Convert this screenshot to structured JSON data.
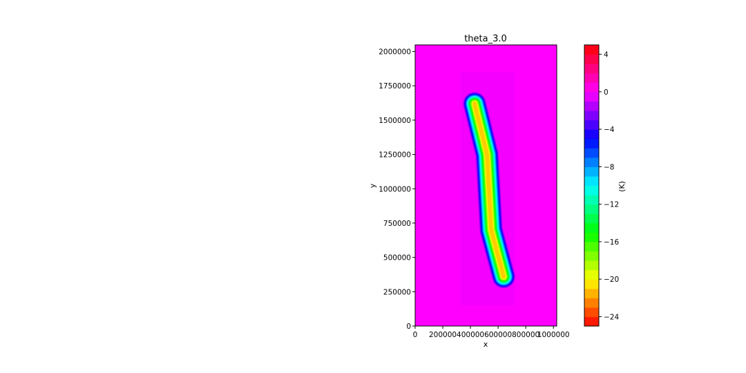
{
  "chart_data": {
    "type": "heatmap",
    "title": "theta_3.0",
    "xlabel": "x",
    "ylabel": "y",
    "xlim": [
      0,
      1024000
    ],
    "ylim": [
      0,
      2048000
    ],
    "x_ticks": [
      0,
      200000,
      400000,
      600000,
      800000,
      1000000
    ],
    "x_tick_labels": [
      "0",
      "200000",
      "400000",
      "600000",
      "800000",
      "1000000"
    ],
    "y_ticks": [
      0,
      250000,
      500000,
      750000,
      1000000,
      1250000,
      1500000,
      1750000,
      2000000
    ],
    "y_tick_labels": [
      "0",
      "250000",
      "500000",
      "750000",
      "1000000",
      "1250000",
      "1500000",
      "1750000",
      "2000000"
    ],
    "background_value": 0,
    "feature": {
      "description_points": [
        [
          640000,
          360000
        ],
        [
          550000,
          700000
        ],
        [
          520000,
          1250000
        ],
        [
          430000,
          1620000
        ]
      ],
      "min_value": -21
    },
    "colorbar": {
      "label": "(K)",
      "vmin": -25,
      "vmax": 5,
      "ticks": [
        4,
        0,
        -4,
        -8,
        -12,
        -16,
        -20,
        -24
      ],
      "tick_labels": [
        "4",
        "0",
        "−4",
        "−8",
        "−12",
        "−16",
        "−20",
        "−24"
      ],
      "colormap": "hsv",
      "levels": 30
    },
    "grid": false,
    "legend": "none"
  }
}
